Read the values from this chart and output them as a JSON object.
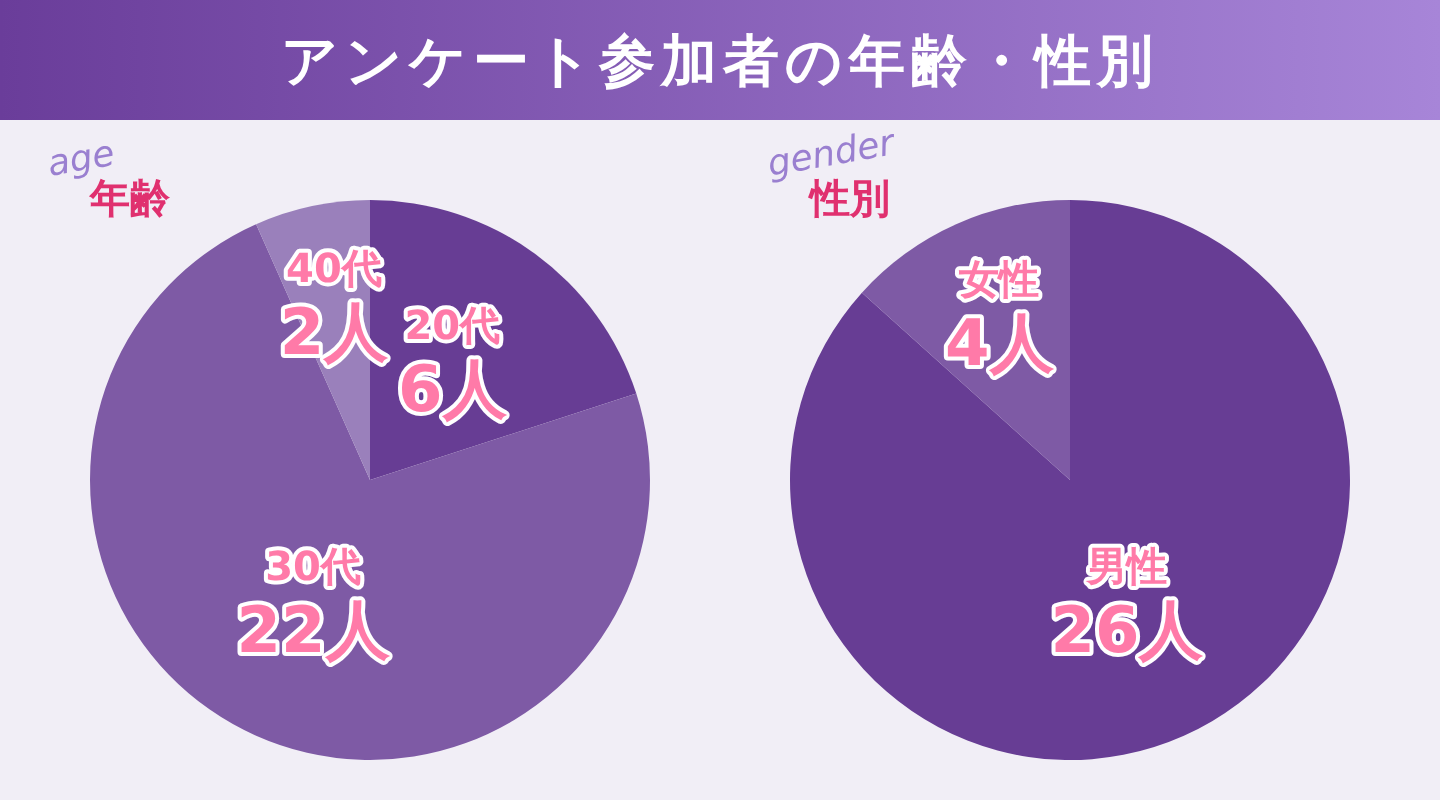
{
  "chart_data": [
    {
      "type": "pie",
      "title": "アンケート参加者の年齢・性別",
      "subtitle": "年齢",
      "annotations": [
        "age"
      ],
      "categories": [
        "20代",
        "30代",
        "40代"
      ],
      "values": [
        6,
        22,
        2
      ],
      "colors": [
        "#673d94",
        "#7e5aa5",
        "#9a80bb"
      ],
      "value_labels": [
        "6人",
        "22人",
        "2人"
      ]
    },
    {
      "type": "pie",
      "subtitle": "性別",
      "annotations": [
        "gender"
      ],
      "categories": [
        "男性",
        "女性"
      ],
      "values": [
        26,
        4
      ],
      "colors": [
        "#673d94",
        "#7e5aa5"
      ],
      "value_labels": [
        "26人",
        "4人"
      ]
    }
  ]
}
